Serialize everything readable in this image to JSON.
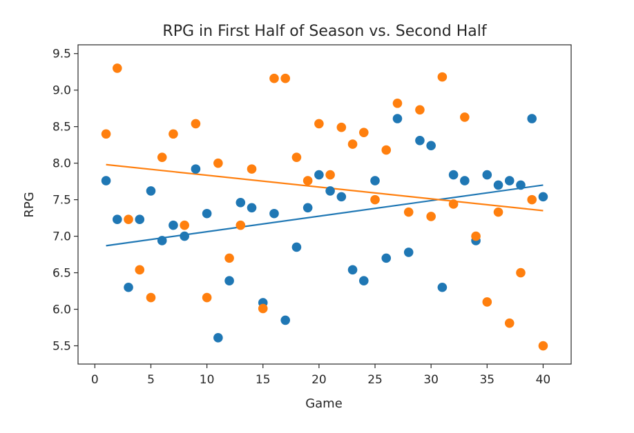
{
  "chart_data": {
    "type": "scatter",
    "title": "RPG in First Half of Season vs. Second Half",
    "xlabel": "Game",
    "ylabel": "RPG",
    "xlim": [
      -1.5,
      42.5
    ],
    "ylim": [
      5.25,
      9.62
    ],
    "x_ticks": [
      0,
      5,
      10,
      15,
      20,
      25,
      30,
      35,
      40
    ],
    "x_tick_labels": [
      "0",
      "5",
      "10",
      "15",
      "20",
      "25",
      "30",
      "35",
      "40"
    ],
    "y_ticks": [
      5.5,
      6.0,
      6.5,
      7.0,
      7.5,
      8.0,
      8.5,
      9.0,
      9.5
    ],
    "y_tick_labels": [
      "5.5",
      "6.0",
      "6.5",
      "7.0",
      "7.5",
      "8.0",
      "8.5",
      "9.0",
      "9.5"
    ],
    "grid": false,
    "legend": "none",
    "series": [
      {
        "color": "#1f77b4",
        "x": [
          1,
          2,
          3,
          4,
          5,
          6,
          7,
          8,
          9,
          10,
          11,
          12,
          13,
          14,
          15,
          16,
          17,
          18,
          19,
          20,
          21,
          22,
          23,
          24,
          25,
          26,
          27,
          28,
          29,
          30,
          31,
          32,
          33,
          34,
          35,
          36,
          37,
          38,
          39,
          40
        ],
        "y": [
          7.76,
          7.23,
          6.3,
          7.23,
          7.62,
          6.94,
          7.15,
          7.0,
          7.92,
          7.31,
          5.61,
          6.39,
          7.46,
          7.39,
          6.09,
          7.31,
          5.85,
          6.85,
          7.39,
          7.84,
          7.62,
          7.54,
          6.54,
          6.39,
          7.76,
          6.7,
          8.61,
          6.78,
          8.31,
          8.24,
          6.3,
          7.84,
          7.76,
          6.94,
          7.84,
          7.7,
          7.76,
          7.7,
          8.61,
          7.54
        ],
        "trend": {
          "x": [
            1,
            40
          ],
          "y": [
            6.87,
            7.7
          ]
        }
      },
      {
        "color": "#ff7f0e",
        "x": [
          1,
          2,
          3,
          4,
          5,
          6,
          7,
          8,
          9,
          10,
          11,
          12,
          13,
          14,
          15,
          16,
          17,
          18,
          19,
          20,
          21,
          22,
          23,
          24,
          25,
          26,
          27,
          28,
          29,
          30,
          31,
          32,
          33,
          34,
          35,
          36,
          37,
          38,
          39,
          40
        ],
        "y": [
          8.4,
          9.3,
          7.23,
          6.54,
          6.16,
          8.08,
          8.4,
          7.15,
          8.54,
          6.16,
          8.0,
          6.7,
          7.15,
          7.92,
          6.01,
          9.16,
          9.16,
          8.08,
          7.76,
          8.54,
          7.84,
          8.49,
          8.26,
          8.42,
          7.5,
          8.18,
          8.82,
          7.33,
          8.73,
          7.27,
          9.18,
          7.44,
          8.63,
          7.0,
          6.1,
          7.33,
          5.81,
          6.5,
          7.5,
          5.5
        ],
        "trend": {
          "x": [
            1,
            40
          ],
          "y": [
            7.98,
            7.35
          ]
        }
      }
    ]
  }
}
